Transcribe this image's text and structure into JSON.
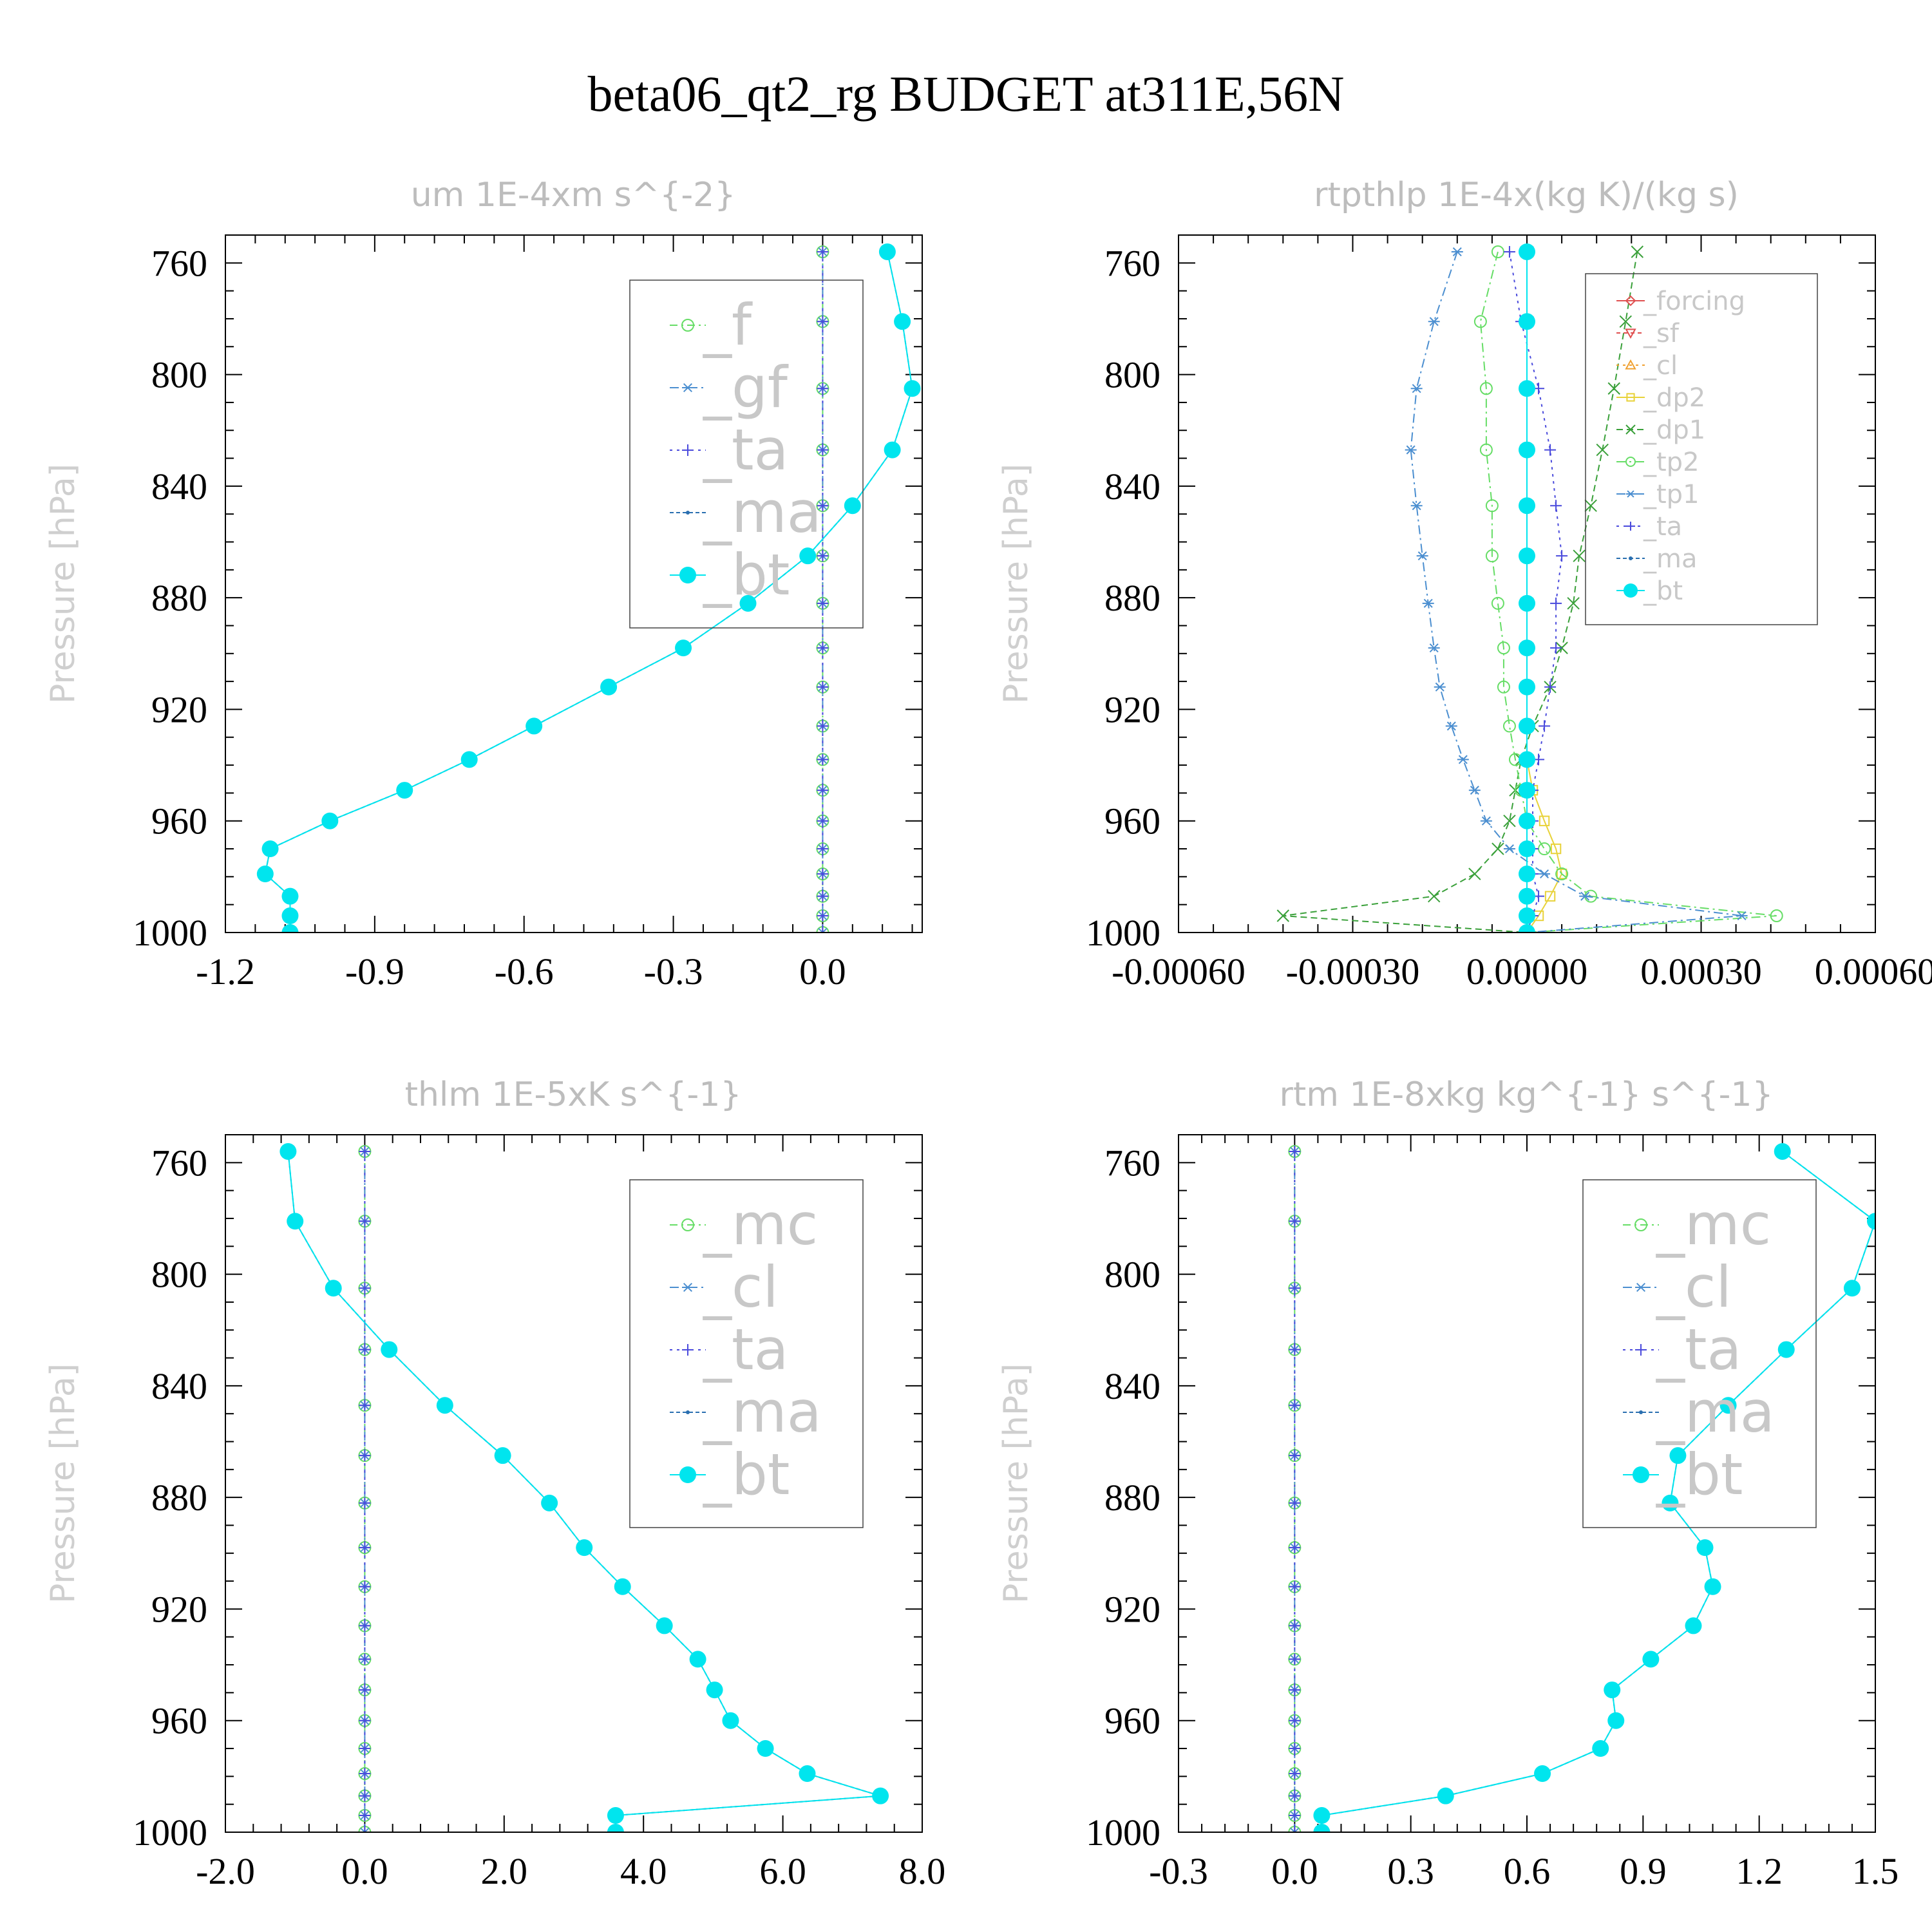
{
  "figure": {
    "title": "beta06_qt2_rg  BUDGET at311E,56N",
    "ylabel": "Pressure [hPa]",
    "yticks": [
      "760",
      "800",
      "840",
      "880",
      "920",
      "960",
      "1000"
    ]
  },
  "chart_data": [
    {
      "type": "line",
      "title": "um  1E-4xm s^{-2}",
      "ylabel": "Pressure [hPa]",
      "ylim": [
        1000,
        750
      ],
      "xlim": [
        -1.2,
        0.2
      ],
      "xticks": [
        "-1.2",
        "-0.9",
        "-0.6",
        "-0.3",
        "0.0"
      ],
      "xtick_values": [
        -1.2,
        -0.9,
        -0.6,
        -0.3,
        0.0
      ],
      "legend_pos": "top-right",
      "legend_font": 88,
      "y": [
        756,
        781,
        805,
        827,
        847,
        865,
        882,
        898,
        912,
        926,
        938,
        949,
        960,
        970,
        979,
        987,
        994,
        1000
      ],
      "series": [
        {
          "name": "_f",
          "color": "#66dd66",
          "marker": "circle",
          "dash": "12,6,3,6",
          "values": [
            0,
            0,
            0,
            0,
            0,
            0,
            0,
            0,
            0,
            0,
            0,
            0,
            0,
            0,
            0,
            0,
            0,
            0
          ]
        },
        {
          "name": "_gf",
          "color": "#4c8fd0",
          "marker": "asterisk",
          "dash": "14,6,3,6",
          "values": [
            0,
            0,
            0,
            0,
            0,
            0,
            0,
            0,
            0,
            0,
            0,
            0,
            0,
            0,
            0,
            0,
            0,
            0
          ]
        },
        {
          "name": "_ta",
          "color": "#4a4adc",
          "marker": "plus",
          "dash": "4,7",
          "values": [
            0,
            0,
            0,
            0,
            0,
            0,
            0,
            0,
            0,
            0,
            0,
            0,
            0,
            0,
            0,
            0,
            0.0,
            0.0
          ]
        },
        {
          "name": "_ma",
          "color": "#2a6fb0",
          "marker": "dot",
          "dash": "6,4",
          "values": [
            0.13,
            0.16,
            0.18,
            0.14,
            0.06,
            -0.03,
            -0.15,
            -0.28,
            -0.43,
            -0.58,
            -0.71,
            -0.84,
            -0.99,
            -1.11,
            -1.12,
            -1.07,
            -1.07,
            -1.07
          ]
        },
        {
          "name": "_bt",
          "color": "#00e5ee",
          "marker": "bigdot",
          "dash": "none",
          "values": [
            0.13,
            0.16,
            0.18,
            0.14,
            0.06,
            -0.03,
            -0.15,
            -0.28,
            -0.43,
            -0.58,
            -0.71,
            -0.84,
            -0.99,
            -1.11,
            -1.12,
            -1.07,
            -1.07,
            -1.07
          ]
        }
      ]
    },
    {
      "type": "line",
      "title": "rtpthlp  1E-4x(kg K)/(kg s)",
      "ylabel": "Pressure [hPa]",
      "ylim": [
        1000,
        750
      ],
      "xlim": [
        -0.0006,
        0.0006
      ],
      "xticks": [
        "-0.00060",
        "-0.00030",
        "0.00000",
        "0.00030",
        "0.00060"
      ],
      "xtick_values": [
        -0.0006,
        -0.0003,
        0.0,
        0.0003,
        0.0006
      ],
      "legend_pos": "top-right",
      "legend_font": 40,
      "y": [
        756,
        781,
        805,
        827,
        847,
        865,
        882,
        898,
        912,
        926,
        938,
        949,
        960,
        970,
        979,
        987,
        994,
        1000
      ],
      "series": [
        {
          "name": "_forcing",
          "color": "#e05050",
          "marker": "diamond",
          "dash": "none",
          "values": [
            0,
            0,
            0,
            0,
            0,
            0,
            0,
            0,
            0,
            0,
            0,
            0,
            0,
            0,
            0,
            0,
            0,
            0
          ]
        },
        {
          "name": "_sf",
          "color": "#e05050",
          "marker": "tridown",
          "dash": "6,5",
          "values": [
            0,
            0,
            0,
            0,
            0,
            0,
            0,
            0,
            0,
            0,
            0,
            0,
            0,
            0,
            0,
            0,
            0,
            0
          ]
        },
        {
          "name": "_cl",
          "color": "#f0a030",
          "marker": "triup",
          "dash": "4,6",
          "values": [
            0,
            0,
            0,
            0,
            0,
            0,
            0,
            0,
            0,
            0,
            0,
            0,
            0,
            0,
            0,
            0,
            0,
            0
          ]
        },
        {
          "name": "_dp2",
          "color": "#e8d23a",
          "marker": "square",
          "dash": "none",
          "values": [
            0,
            0,
            0,
            0,
            0,
            0,
            0,
            0,
            0,
            0,
            0,
            1e-05,
            3e-05,
            5e-05,
            6e-05,
            4e-05,
            2e-05,
            0
          ]
        },
        {
          "name": "_dp1",
          "color": "#3aa03a",
          "marker": "cross",
          "dash": "10,6",
          "values": [
            0.00019,
            0.00017,
            0.00015,
            0.00013,
            0.00011,
            9e-05,
            8e-05,
            6e-05,
            4e-05,
            1e-05,
            -1e-05,
            -2e-05,
            -3e-05,
            -5e-05,
            -9e-05,
            -0.00016,
            -0.00042,
            0
          ]
        },
        {
          "name": "_tp2",
          "color": "#66dd66",
          "marker": "circle",
          "dash": "14,6,3,6",
          "values": [
            -5e-05,
            -8e-05,
            -7e-05,
            -7e-05,
            -6e-05,
            -6e-05,
            -5e-05,
            -4e-05,
            -4e-05,
            -3e-05,
            -2e-05,
            -1e-05,
            0,
            3e-05,
            6e-05,
            0.00011,
            0.00043,
            0
          ]
        },
        {
          "name": "_tp1",
          "color": "#4c8fd0",
          "marker": "asterisk",
          "dash": "14,6,3,6",
          "values": [
            -0.00012,
            -0.00016,
            -0.00019,
            -0.0002,
            -0.00019,
            -0.00018,
            -0.00017,
            -0.00016,
            -0.00015,
            -0.00013,
            -0.00011,
            -9e-05,
            -7e-05,
            -3e-05,
            3e-05,
            0.0001,
            0.00037,
            0
          ]
        },
        {
          "name": "_ta",
          "color": "#4a4adc",
          "marker": "plus",
          "dash": "4,7",
          "values": [
            -3e-05,
            -1e-05,
            2e-05,
            4e-05,
            5e-05,
            6e-05,
            5e-05,
            5e-05,
            4e-05,
            3e-05,
            2e-05,
            1e-05,
            1e-05,
            1e-05,
            1e-05,
            2e-05,
            1e-05,
            0
          ]
        },
        {
          "name": "_ma",
          "color": "#2a6fb0",
          "marker": "dot",
          "dash": "6,4",
          "values": [
            0,
            0,
            0,
            0,
            0,
            0,
            0,
            0,
            0,
            0,
            0,
            0,
            0,
            0,
            0,
            0,
            0,
            0
          ]
        },
        {
          "name": "_bt",
          "color": "#00e5ee",
          "marker": "bigdot",
          "dash": "none",
          "values": [
            0,
            0,
            0,
            0,
            0,
            0,
            0,
            0,
            0,
            0,
            0,
            0,
            0,
            0,
            0,
            0,
            0,
            0
          ]
        }
      ]
    },
    {
      "type": "line",
      "title": "thlm  1E-5xK s^{-1}",
      "ylabel": "Pressure [hPa]",
      "ylim": [
        1000,
        750
      ],
      "xlim": [
        -2.0,
        8.0
      ],
      "xticks": [
        "-2.0",
        "0.0",
        "2.0",
        "4.0",
        "6.0",
        "8.0"
      ],
      "xtick_values": [
        -2.0,
        0.0,
        2.0,
        4.0,
        6.0,
        8.0
      ],
      "legend_pos": "top-right",
      "legend_font": 88,
      "y": [
        756,
        781,
        805,
        827,
        847,
        865,
        882,
        898,
        912,
        926,
        938,
        949,
        960,
        970,
        979,
        987,
        994,
        1000
      ],
      "series": [
        {
          "name": "_mc",
          "color": "#66dd66",
          "marker": "circle",
          "dash": "12,6,3,6",
          "values": [
            0,
            0,
            0,
            0,
            0,
            0,
            0,
            0,
            0,
            0,
            0,
            0,
            0,
            0,
            0,
            0,
            0,
            0
          ]
        },
        {
          "name": "_cl",
          "color": "#4c8fd0",
          "marker": "asterisk",
          "dash": "14,6,3,6",
          "values": [
            0,
            0,
            0,
            0,
            0,
            0,
            0,
            0,
            0,
            0,
            0,
            0,
            0,
            0,
            0,
            0,
            0,
            0
          ]
        },
        {
          "name": "_ta",
          "color": "#4a4adc",
          "marker": "plus",
          "dash": "4,7",
          "values": [
            0,
            0,
            0,
            0,
            0,
            0,
            0,
            0,
            0,
            0,
            0,
            0,
            0,
            0,
            0,
            0,
            0,
            0
          ]
        },
        {
          "name": "_ma",
          "color": "#2a6fb0",
          "marker": "dot",
          "dash": "6,4",
          "values": [
            -1.1,
            -1.0,
            -0.45,
            0.35,
            1.15,
            1.98,
            2.65,
            3.15,
            3.7,
            4.3,
            4.78,
            5.02,
            5.25,
            5.75,
            6.35,
            7.4,
            3.6,
            3.6
          ]
        },
        {
          "name": "_bt",
          "color": "#00e5ee",
          "marker": "bigdot",
          "dash": "none",
          "values": [
            -1.1,
            -1.0,
            -0.45,
            0.35,
            1.15,
            1.98,
            2.65,
            3.15,
            3.7,
            4.3,
            4.78,
            5.02,
            5.25,
            5.75,
            6.35,
            7.4,
            3.6,
            3.6
          ]
        }
      ]
    },
    {
      "type": "line",
      "title": "rtm  1E-8xkg kg^{-1} s^{-1}",
      "ylabel": "Pressure [hPa]",
      "ylim": [
        1000,
        750
      ],
      "xlim": [
        -0.3,
        1.5
      ],
      "xticks": [
        "-0.3",
        "0.0",
        "0.3",
        "0.6",
        "0.9",
        "1.2",
        "1.5"
      ],
      "xtick_values": [
        -0.3,
        0.0,
        0.3,
        0.6,
        0.9,
        1.2,
        1.5
      ],
      "legend_pos": "top-right",
      "legend_font": 88,
      "y": [
        756,
        781,
        805,
        827,
        847,
        865,
        882,
        898,
        912,
        926,
        938,
        949,
        960,
        970,
        979,
        987,
        994,
        1000
      ],
      "series": [
        {
          "name": "_mc",
          "color": "#66dd66",
          "marker": "circle",
          "dash": "12,6,3,6",
          "values": [
            0,
            0,
            0,
            0,
            0,
            0,
            0,
            0,
            0,
            0,
            0,
            0,
            0,
            0,
            0,
            0,
            0,
            0
          ]
        },
        {
          "name": "_cl",
          "color": "#4c8fd0",
          "marker": "asterisk",
          "dash": "14,6,3,6",
          "values": [
            0,
            0,
            0,
            0,
            0,
            0,
            0,
            0,
            0,
            0,
            0,
            0,
            0,
            0,
            0,
            0,
            0,
            0
          ]
        },
        {
          "name": "_ta",
          "color": "#4a4adc",
          "marker": "plus",
          "dash": "4,7",
          "values": [
            0,
            0,
            0,
            0,
            0,
            0,
            0,
            0,
            0,
            0,
            0,
            0,
            0,
            0,
            0,
            0,
            0,
            0
          ]
        },
        {
          "name": "_ma",
          "color": "#2a6fb0",
          "marker": "dot",
          "dash": "6,4",
          "values": [
            1.26,
            1.5,
            1.44,
            1.27,
            1.12,
            0.99,
            0.97,
            1.06,
            1.08,
            1.03,
            0.92,
            0.82,
            0.83,
            0.79,
            0.64,
            0.39,
            0.07,
            0.07
          ]
        },
        {
          "name": "_bt",
          "color": "#00e5ee",
          "marker": "bigdot",
          "dash": "none",
          "values": [
            1.26,
            1.5,
            1.44,
            1.27,
            1.12,
            0.99,
            0.97,
            1.06,
            1.08,
            1.03,
            0.92,
            0.82,
            0.83,
            0.79,
            0.64,
            0.39,
            0.07,
            0.07
          ]
        }
      ]
    }
  ]
}
